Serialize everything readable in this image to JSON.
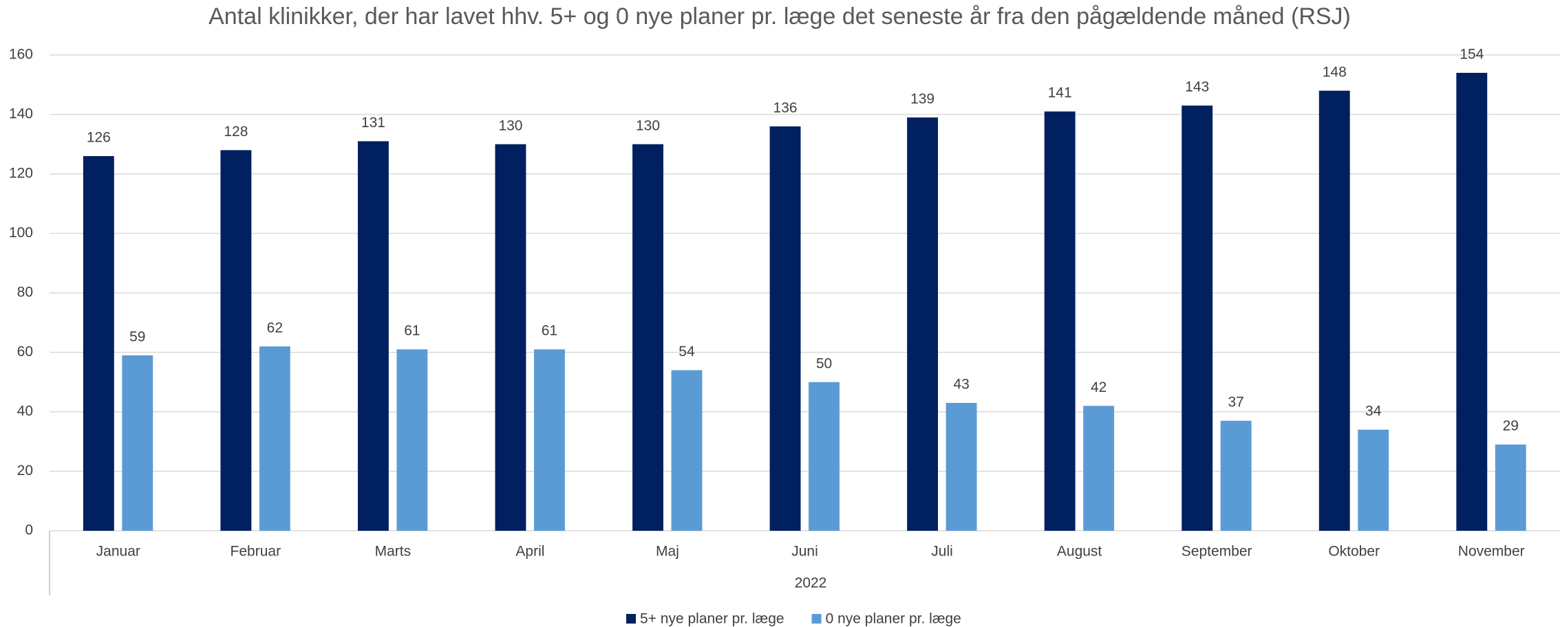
{
  "chart_data": {
    "type": "bar",
    "title": "Antal klinikker, der har lavet hhv. 5+ og 0 nye planer pr. læge det seneste år fra den pågældende måned (RSJ)",
    "categories": [
      "Januar",
      "Februar",
      "Marts",
      "April",
      "Maj",
      "Juni",
      "Juli",
      "August",
      "September",
      "Oktober",
      "November"
    ],
    "category_group": "2022",
    "series": [
      {
        "name": "5+ nye planer pr. læge",
        "color": "#002060",
        "values": [
          126,
          128,
          131,
          130,
          130,
          136,
          139,
          141,
          143,
          148,
          154
        ]
      },
      {
        "name": "0 nye planer pr. læge",
        "color": "#5b9bd5",
        "values": [
          59,
          62,
          61,
          61,
          54,
          50,
          43,
          42,
          37,
          34,
          29
        ]
      }
    ],
    "ylim": [
      0,
      160
    ],
    "yticks": [
      0,
      20,
      40,
      60,
      80,
      100,
      120,
      140,
      160
    ],
    "grid": true,
    "legend": "bottom"
  }
}
